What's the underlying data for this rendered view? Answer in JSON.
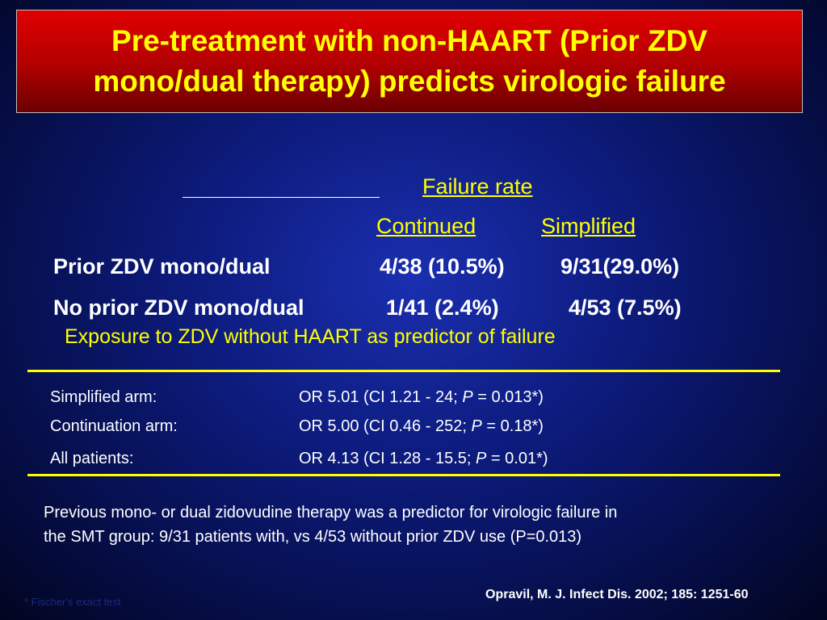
{
  "title": {
    "lines": [
      "Pre-treatment with non-HAART (Prior ZDV",
      "mono/dual therapy) predicts virologic failure"
    ]
  },
  "table": {
    "group_header": "Failure rate",
    "columns": [
      "Continued",
      "Simplified"
    ],
    "rows": [
      [
        "Prior ZDV mono/dual",
        "4/38 (10.5%)",
        "9/31(29.0%)"
      ],
      [
        "No prior ZDV mono/dual",
        "1/41 (2.4%)",
        "4/53 (7.5%)"
      ]
    ]
  },
  "odds": {
    "heading": "Exposure to ZDV without HAART as predictor of failure",
    "rows": [
      [
        "Simplified arm:",
        "OR 5.01 (CI 1.21 - 24;",
        "P",
        "= 0.013*)"
      ],
      [
        "Continuation arm:",
        "OR 5.00 (CI 0.46 - 252;",
        "P",
        "= 0.18*)"
      ],
      [
        "All patients:",
        "OR 4.13 (CI 1.28 - 15.5;",
        "P",
        "= 0.01*)"
      ]
    ]
  },
  "summary": {
    "lines": [
      "Previous mono- or dual zidovudine therapy was a predictor for virologic failure in",
      "the SMT group: 9/31 patients with, vs 4/53 without prior ZDV use (P=0.013)"
    ]
  },
  "citation": "Opravil, M. J. Infect Dis. 2002; 185: 1251-60",
  "footnote": "* Fischer's exact test"
}
